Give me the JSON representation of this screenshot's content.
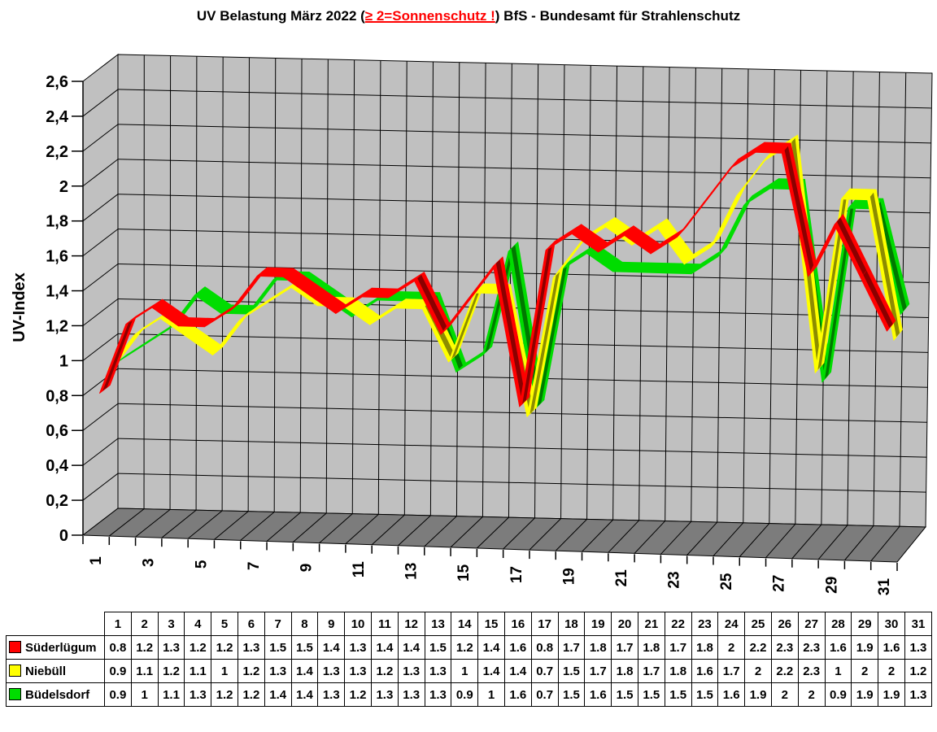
{
  "title": {
    "prefix": "UV Belastung März 2022 (",
    "warning": "≥ 2=Sonnenschutz !",
    "suffix": ") BfS - Bundesamt für Strahlenschutz",
    "warning_color": "#FF0000"
  },
  "chart_data": {
    "type": "line",
    "style": "3d-ribbon",
    "title": "UV Belastung März 2022 (≥ 2=Sonnenschutz !) BfS - Bundesamt für Strahlenschutz",
    "ylabel": "UV-Index",
    "xlabel": "",
    "ylim": [
      0,
      2.6
    ],
    "y_tick_step": 0.2,
    "y_tick_labels": [
      "0",
      "0,2",
      "0,4",
      "0,6",
      "0,8",
      "1",
      "1,2",
      "1,4",
      "1,6",
      "1,8",
      "2",
      "2,2",
      "2,4",
      "2,6"
    ],
    "categories": [
      1,
      2,
      3,
      4,
      5,
      6,
      7,
      8,
      9,
      10,
      11,
      12,
      13,
      14,
      15,
      16,
      17,
      18,
      19,
      20,
      21,
      22,
      23,
      24,
      25,
      26,
      27,
      28,
      29,
      30,
      31
    ],
    "x_labeled_ticks": [
      1,
      3,
      5,
      7,
      9,
      11,
      13,
      15,
      17,
      19,
      21,
      23,
      25,
      27,
      29,
      31
    ],
    "grid": "on",
    "legend_position": "table-left",
    "wall_color": "#C0C0C0",
    "floor_color": "#7C7C7C",
    "gridline_color": "#000000",
    "series": [
      {
        "name": "Süderlügum",
        "color": "#FF0000",
        "side_color": "#8B0000",
        "values": [
          0.8,
          1.2,
          1.3,
          1.2,
          1.2,
          1.3,
          1.5,
          1.5,
          1.4,
          1.3,
          1.4,
          1.4,
          1.5,
          1.2,
          1.4,
          1.6,
          0.8,
          1.7,
          1.8,
          1.7,
          1.8,
          1.7,
          1.8,
          2,
          2.2,
          2.3,
          2.3,
          1.6,
          1.9,
          1.6,
          1.3
        ]
      },
      {
        "name": "Niebüll",
        "color": "#FFFF00",
        "side_color": "#8C8C00",
        "values": [
          0.9,
          1.1,
          1.2,
          1.1,
          1,
          1.2,
          1.3,
          1.4,
          1.3,
          1.3,
          1.2,
          1.3,
          1.3,
          1,
          1.4,
          1.4,
          0.7,
          1.5,
          1.7,
          1.8,
          1.7,
          1.8,
          1.6,
          1.7,
          2,
          2.2,
          2.3,
          1,
          2,
          2,
          1.2
        ]
      },
      {
        "name": "Büdelsdorf",
        "color": "#00DD00",
        "side_color": "#007800",
        "values": [
          0.9,
          1,
          1.1,
          1.3,
          1.2,
          1.2,
          1.4,
          1.4,
          1.3,
          1.2,
          1.3,
          1.3,
          1.3,
          0.9,
          1,
          1.6,
          0.7,
          1.5,
          1.6,
          1.5,
          1.5,
          1.5,
          1.5,
          1.6,
          1.9,
          2,
          2,
          0.9,
          1.9,
          1.9,
          1.3
        ]
      }
    ]
  },
  "table": {
    "corner_label": ""
  }
}
